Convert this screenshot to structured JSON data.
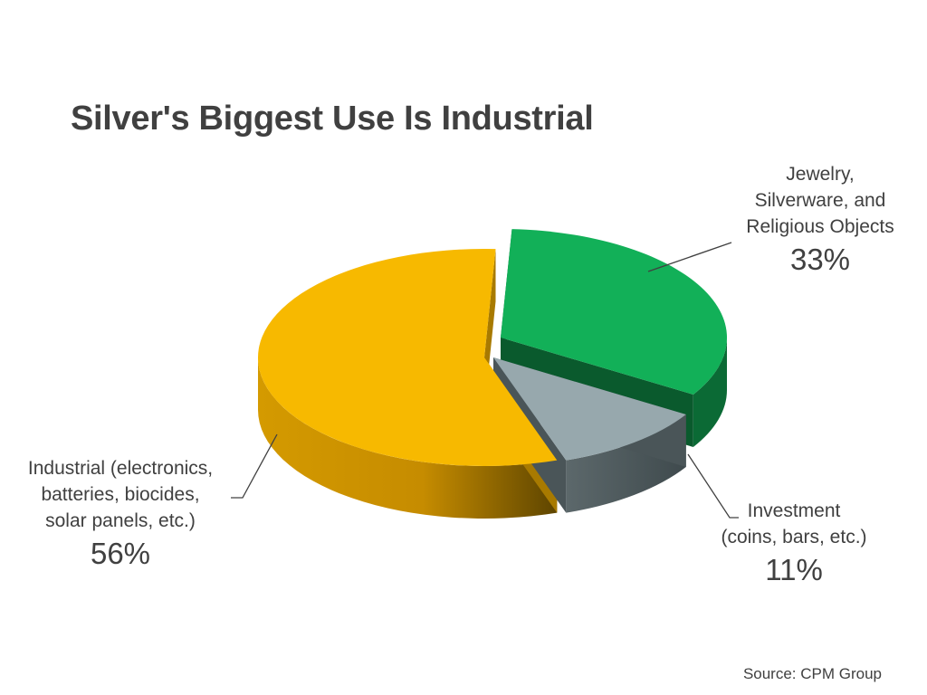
{
  "chart_data": {
    "type": "pie",
    "title": "Silver's Biggest Use Is Industrial",
    "slices": [
      {
        "label_lines": [
          "Jewelry,",
          "Silverware, and",
          "Religious Objects"
        ],
        "value": 33,
        "value_label": "33%",
        "color": "#12b058"
      },
      {
        "label_lines": [
          "Investment",
          "(coins, bars, etc.)"
        ],
        "value": 11,
        "value_label": "11%",
        "color": "#97a8ad"
      },
      {
        "label_lines": [
          "Industrial (electronics,",
          "batteries, biocides,",
          "solar panels, etc.)"
        ],
        "value": 56,
        "value_label": "56%",
        "color": "#f7b900"
      }
    ],
    "legend": "none",
    "source": "Source: CPM Group"
  }
}
